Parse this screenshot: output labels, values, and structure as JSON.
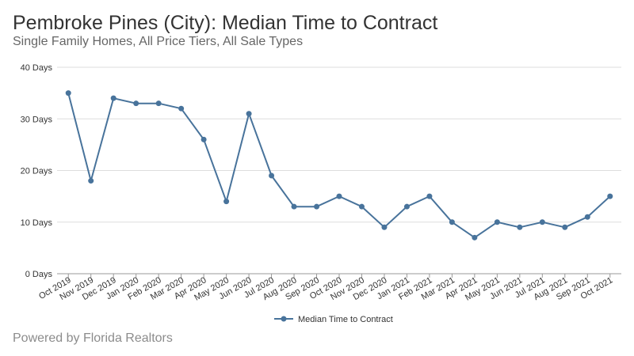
{
  "header": {
    "title": "Pembroke Pines (City): Median Time to Contract",
    "subtitle": "Single Family Homes, All Price Tiers, All Sale Types"
  },
  "footer": {
    "text": "Powered by Florida Realtors"
  },
  "colors": {
    "series": "#48739b",
    "grid": "#dddddd",
    "axis": "#999999"
  },
  "chart_data": {
    "type": "line",
    "title": "Pembroke Pines (City): Median Time to Contract",
    "subtitle": "Single Family Homes, All Price Tiers, All Sale Types",
    "categories": [
      "Oct 2019",
      "Nov 2019",
      "Dec 2019",
      "Jan 2020",
      "Feb 2020",
      "Mar 2020",
      "Apr 2020",
      "May 2020",
      "Jun 2020",
      "Jul 2020",
      "Aug 2020",
      "Sep 2020",
      "Oct 2020",
      "Nov 2020",
      "Dec 2020",
      "Jan 2021",
      "Feb 2021",
      "Mar 2021",
      "Apr 2021",
      "May 2021",
      "Jun 2021",
      "Jul 2021",
      "Aug 2021",
      "Sep 2021",
      "Oct 2021"
    ],
    "series": [
      {
        "name": "Median Time to Contract",
        "values": [
          35,
          18,
          34,
          33,
          33,
          32,
          26,
          14,
          31,
          19,
          13,
          13,
          15,
          13,
          9,
          13,
          15,
          10,
          7,
          10,
          9,
          10,
          9,
          11,
          15
        ]
      }
    ],
    "ylim": [
      0,
      40
    ],
    "yticks": [
      0,
      10,
      20,
      30,
      40
    ],
    "ytick_labels": [
      "0 Days",
      "10 Days",
      "20 Days",
      "30 Days",
      "40 Days"
    ],
    "xlabel": "",
    "ylabel": "",
    "grid": true,
    "legend": "bottom-center"
  }
}
